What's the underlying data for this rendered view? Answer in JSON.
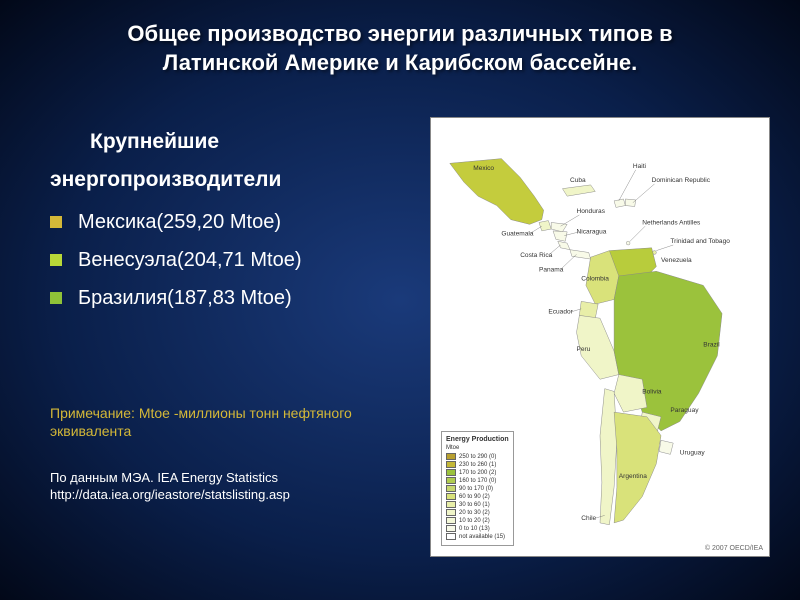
{
  "title_line1": "Общее производство энергии различных типов в",
  "title_line2": "Латинской Америке и Карибском бассейне.",
  "subtitle_line1": "Крупнейшие",
  "subtitle_line2": "энергопроизводители",
  "producers": [
    {
      "label": "Мексика(259,20 Mtoe)",
      "color": "#d4b838"
    },
    {
      "label": "Венесуэла(204,71 Mtoe)",
      "color": "#b8d838"
    },
    {
      "label": "Бразилия(187,83 Mtoe)",
      "color": "#8fc238"
    }
  ],
  "note_line1": "Примечание: Mtoe -миллионы тонн нефтяного",
  "note_line2": "эквивалента",
  "source_line1": "По данным МЭА. IEA Energy Statistics",
  "source_line2": "http://data.iea.org/ieastore/statslisting.asp",
  "map": {
    "background": "#ffffff",
    "copyright": "© 2007 OECD/IEA",
    "countries": {
      "mexico": {
        "label": "Mexico",
        "fill": "#c4cc3d"
      },
      "brazil": {
        "label": "Brazil",
        "fill": "#9bc23c"
      },
      "venezuela": {
        "label": "Venezuela",
        "fill": "#b8cc3c"
      },
      "argentina": {
        "label": "Argentina",
        "fill": "#d9e27a"
      },
      "colombia": {
        "label": "Colombia",
        "fill": "#d9e27a"
      },
      "peru": {
        "label": "Peru",
        "fill": "#f0f5c8"
      },
      "bolivia": {
        "label": "Bolivia",
        "fill": "#f0f5c8"
      },
      "chile": {
        "label": "Chile",
        "fill": "#f0f5c8"
      },
      "ecuador": {
        "label": "Ecuador",
        "fill": "#e8eea8"
      },
      "paraguay": {
        "label": "Paraguay",
        "fill": "#f0f5c8"
      },
      "uruguay": {
        "label": "Uruguay",
        "fill": "#f8fae8"
      },
      "guatemala": {
        "label": "Guatemala",
        "fill": "#f0f5c8"
      },
      "honduras": {
        "label": "Honduras",
        "fill": "#f8fae8"
      },
      "nicaragua": {
        "label": "Nicaragua",
        "fill": "#f8fae8"
      },
      "costarica": {
        "label": "Costa Rica",
        "fill": "#f8fae8"
      },
      "panama": {
        "label": "Panama",
        "fill": "#f8fae8"
      },
      "cuba": {
        "label": "Cuba",
        "fill": "#f0f5c8"
      },
      "haiti": {
        "label": "Haiti",
        "fill": "#f8fae8"
      },
      "dominican": {
        "label": "Dominican Republic",
        "fill": "#f8fae8"
      },
      "trinidad": {
        "label": "Trinidad and Tobago",
        "fill": "#e8eea8"
      },
      "antilles": {
        "label": "Netherlands Antilles",
        "fill": "#f8fae8"
      }
    },
    "legend": {
      "title": "Energy Production",
      "unit": "Mtoe",
      "rows": [
        {
          "range": "250 to 290",
          "count": "(0)",
          "color": "#b8a030"
        },
        {
          "range": "230 to 260",
          "count": "(1)",
          "color": "#c4b838"
        },
        {
          "range": "170 to 200",
          "count": "(2)",
          "color": "#9bc23c"
        },
        {
          "range": "160 to 170",
          "count": "(0)",
          "color": "#b0cc50"
        },
        {
          "range": "90 to 170",
          "count": "(0)",
          "color": "#c8d870"
        },
        {
          "range": "60 to 90",
          "count": "(2)",
          "color": "#d9e27a"
        },
        {
          "range": "30 to 60",
          "count": "(1)",
          "color": "#e8eea8"
        },
        {
          "range": "20 to 30",
          "count": "(2)",
          "color": "#f0f5c8"
        },
        {
          "range": "10 to 20",
          "count": "(2)",
          "color": "#f4f8d8"
        },
        {
          "range": "0 to 10",
          "count": "(13)",
          "color": "#f8fae8"
        },
        {
          "range": "not available",
          "count": "(15)",
          "color": "#ffffff"
        }
      ]
    }
  }
}
